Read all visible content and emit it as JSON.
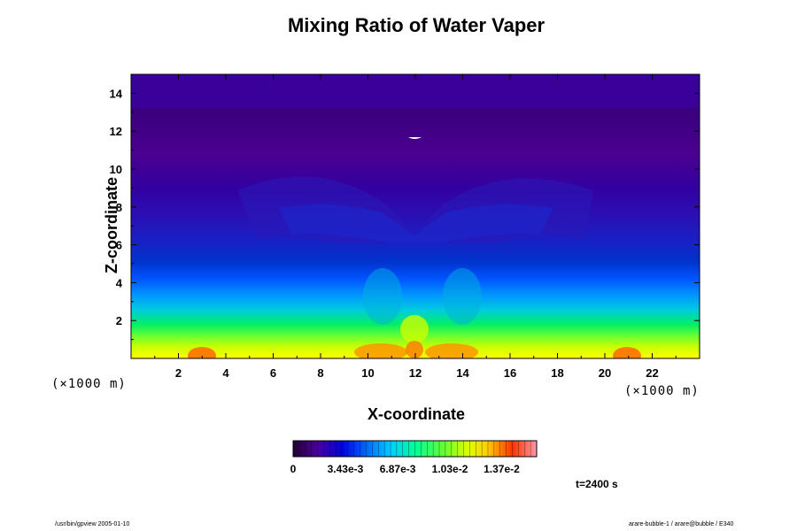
{
  "chart_data": {
    "type": "heatmap",
    "title": "Mixing Ratio of Water Vaper",
    "xlabel": "X-coordinate",
    "ylabel": "Z-coordinate",
    "x_unit": "(×1000 m)",
    "z_unit": "(×1000 m)",
    "xlim": [
      0,
      24
    ],
    "ylim": [
      0,
      15
    ],
    "xticks": [
      2,
      4,
      6,
      8,
      10,
      12,
      14,
      16,
      18,
      20,
      22
    ],
    "yticks": [
      2,
      4,
      6,
      8,
      10,
      12,
      14
    ],
    "colorbar": {
      "range": [
        0,
        0.016
      ],
      "tick_values": [
        0,
        0.00343,
        0.00687,
        0.0103,
        0.0137
      ],
      "tick_labels": [
        "0",
        "3.43e-3",
        "6.87e-3",
        "1.03e-2",
        "1.37e-2"
      ]
    },
    "time_label": "t=2400 s"
  },
  "footer": {
    "left": "/usr/bin/gpview 2005-01-10",
    "right": "arare-bubble-1 / arare@bubble / E340"
  },
  "colors": {
    "low": "#3a0078",
    "mid_low": "#0033cc",
    "mid": "#00cc66",
    "high": "#ffff00",
    "max": "#ff3300"
  }
}
